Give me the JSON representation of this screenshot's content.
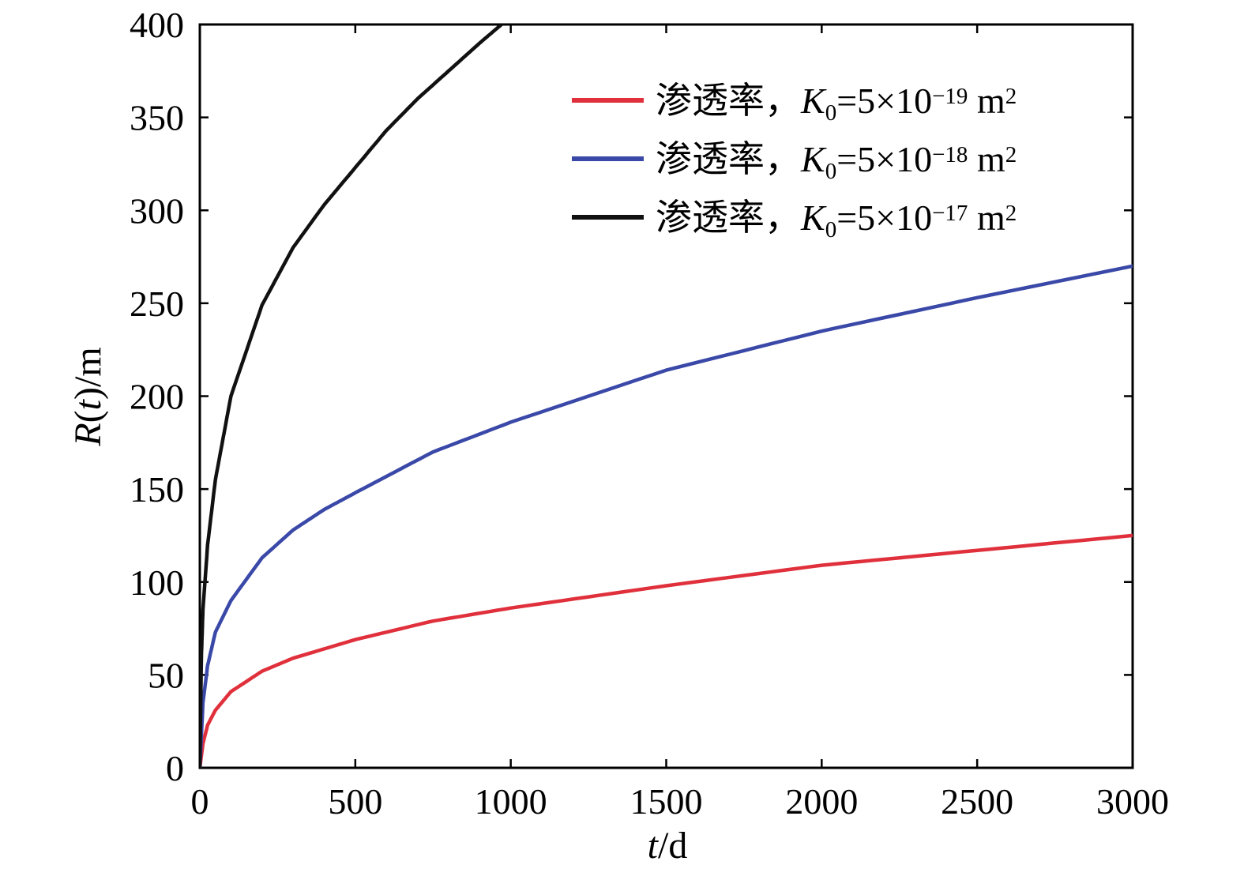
{
  "chart_data": {
    "type": "line",
    "title": "",
    "xlabel": {
      "var": "t",
      "unit": "/d"
    },
    "ylabel": {
      "var": "R",
      "open": "(",
      "arg": "t",
      "close": ")",
      "unit": "/m"
    },
    "xlim": [
      0,
      3000
    ],
    "ylim": [
      0,
      400
    ],
    "xticks": [
      0,
      500,
      1000,
      1500,
      2000,
      2500,
      3000
    ],
    "yticks": [
      0,
      50,
      100,
      150,
      200,
      250,
      300,
      350,
      400
    ],
    "grid": false,
    "legend_position": "top-right",
    "series": [
      {
        "legend_prefix": "渗透率，",
        "legend_symbol": "K",
        "legend_sub": "0",
        "legend_eq": "=5×10",
        "legend_exp": "−19",
        "legend_unit": " m",
        "legend_unit_exp": "2",
        "color": "#e0303c",
        "x": [
          0,
          10,
          25,
          50,
          100,
          200,
          300,
          400,
          500,
          750,
          1000,
          1500,
          2000,
          2500,
          3000
        ],
        "y": [
          0,
          13,
          23,
          31,
          41,
          52,
          59,
          64,
          69,
          79,
          86,
          98,
          109,
          117,
          125
        ]
      },
      {
        "legend_prefix": "渗透率，",
        "legend_symbol": "K",
        "legend_sub": "0",
        "legend_eq": "=5×10",
        "legend_exp": "−18",
        "legend_unit": " m",
        "legend_unit_exp": "2",
        "color": "#3a48a8",
        "x": [
          0,
          10,
          25,
          50,
          100,
          200,
          300,
          400,
          500,
          750,
          1000,
          1500,
          2000,
          2500,
          3000
        ],
        "y": [
          0,
          35,
          55,
          73,
          90,
          113,
          128,
          139,
          148,
          170,
          186,
          214,
          235,
          253,
          270
        ]
      },
      {
        "legend_prefix": "渗透率，",
        "legend_symbol": "K",
        "legend_sub": "0",
        "legend_eq": "=5×10",
        "legend_exp": "−17",
        "legend_unit": " m",
        "legend_unit_exp": "2",
        "color": "#111111",
        "x": [
          0,
          5,
          10,
          25,
          50,
          100,
          200,
          300,
          400,
          500,
          600,
          700,
          800,
          900,
          970
        ],
        "y": [
          0,
          60,
          85,
          120,
          155,
          200,
          249,
          280,
          303,
          323,
          343,
          360,
          375,
          390,
          400
        ]
      }
    ]
  }
}
